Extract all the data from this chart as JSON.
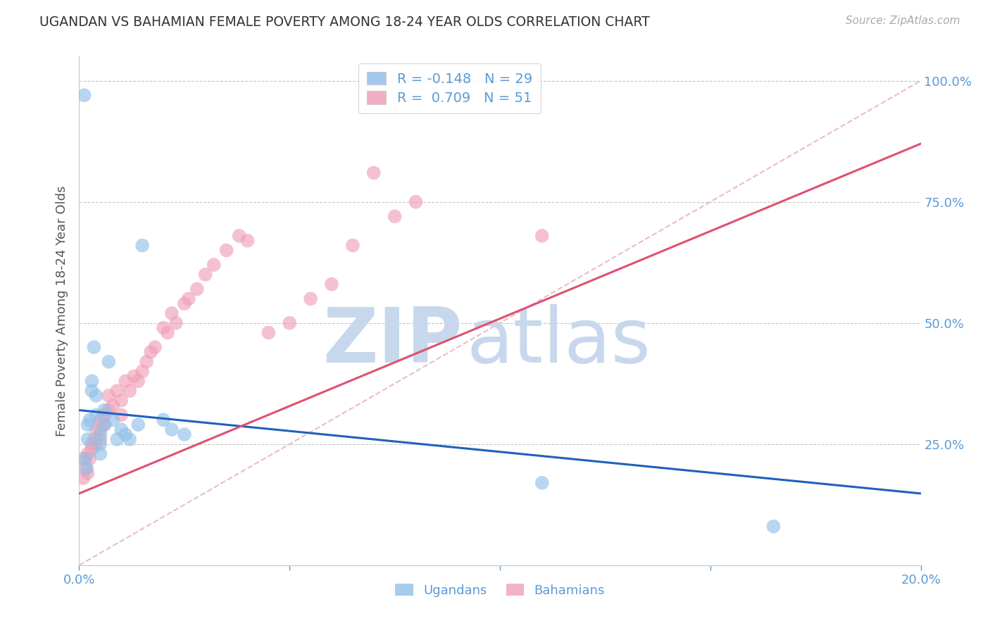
{
  "title": "UGANDAN VS BAHAMIAN FEMALE POVERTY AMONG 18-24 YEAR OLDS CORRELATION CHART",
  "source": "Source: ZipAtlas.com",
  "ylabel": "Female Poverty Among 18-24 Year Olds",
  "xlim": [
    0.0,
    0.2
  ],
  "ylim": [
    0.0,
    1.05
  ],
  "ugandan_R": -0.148,
  "ugandan_N": 29,
  "bahamian_R": 0.709,
  "bahamian_N": 51,
  "blue_color": "#92C0E8",
  "pink_color": "#F0A0B8",
  "blue_line_color": "#2060C0",
  "pink_line_color": "#E05070",
  "dash_line_color": "#E0A0B0",
  "watermark_zip_color": "#C8D8EC",
  "watermark_atlas_color": "#C8D8EC",
  "legend_R_blue": "-0.148",
  "legend_N_blue": "29",
  "legend_R_pink": "0.709",
  "legend_N_pink": "51",
  "blue_line_x0": 0.0,
  "blue_line_y0": 0.32,
  "blue_line_x1": 0.2,
  "blue_line_y1": 0.148,
  "pink_line_x0": 0.0,
  "pink_line_y0": 0.148,
  "pink_line_x1": 0.2,
  "pink_line_y1": 0.87,
  "ugandan_x": [
    0.0012,
    0.0015,
    0.0018,
    0.002,
    0.002,
    0.0025,
    0.003,
    0.003,
    0.0035,
    0.004,
    0.004,
    0.005,
    0.005,
    0.005,
    0.006,
    0.006,
    0.007,
    0.008,
    0.009,
    0.01,
    0.011,
    0.012,
    0.014,
    0.015,
    0.02,
    0.022,
    0.025,
    0.11,
    0.165
  ],
  "ugandan_y": [
    0.97,
    0.22,
    0.2,
    0.26,
    0.29,
    0.3,
    0.36,
    0.38,
    0.45,
    0.35,
    0.31,
    0.27,
    0.25,
    0.23,
    0.29,
    0.32,
    0.42,
    0.3,
    0.26,
    0.28,
    0.27,
    0.26,
    0.29,
    0.66,
    0.3,
    0.28,
    0.27,
    0.17,
    0.08
  ],
  "bahamian_x": [
    0.001,
    0.001,
    0.0015,
    0.002,
    0.002,
    0.0025,
    0.003,
    0.003,
    0.0035,
    0.004,
    0.004,
    0.005,
    0.005,
    0.005,
    0.006,
    0.006,
    0.007,
    0.007,
    0.008,
    0.009,
    0.01,
    0.01,
    0.011,
    0.012,
    0.013,
    0.014,
    0.015,
    0.016,
    0.017,
    0.018,
    0.02,
    0.021,
    0.022,
    0.023,
    0.025,
    0.026,
    0.028,
    0.03,
    0.032,
    0.035,
    0.038,
    0.04,
    0.045,
    0.05,
    0.055,
    0.06,
    0.065,
    0.07,
    0.075,
    0.08,
    0.11
  ],
  "bahamian_y": [
    0.18,
    0.22,
    0.2,
    0.19,
    0.23,
    0.22,
    0.25,
    0.24,
    0.26,
    0.25,
    0.28,
    0.26,
    0.28,
    0.3,
    0.31,
    0.29,
    0.35,
    0.32,
    0.33,
    0.36,
    0.34,
    0.31,
    0.38,
    0.36,
    0.39,
    0.38,
    0.4,
    0.42,
    0.44,
    0.45,
    0.49,
    0.48,
    0.52,
    0.5,
    0.54,
    0.55,
    0.57,
    0.6,
    0.62,
    0.65,
    0.68,
    0.67,
    0.48,
    0.5,
    0.55,
    0.58,
    0.66,
    0.81,
    0.72,
    0.75,
    0.68
  ],
  "grid_color": "#C8C8C8",
  "grid_yticks": [
    0.25,
    0.5,
    0.75,
    1.0
  ],
  "background_color": "#FFFFFF",
  "right_ytick_labels": [
    "25.0%",
    "50.0%",
    "75.0%",
    "100.0%"
  ],
  "right_ytick_vals": [
    0.25,
    0.5,
    0.75,
    1.0
  ],
  "xtick_vals": [
    0.0,
    0.05,
    0.1,
    0.15,
    0.2
  ],
  "xtick_labels": [
    "0.0%",
    "",
    "",
    "",
    "20.0%"
  ]
}
